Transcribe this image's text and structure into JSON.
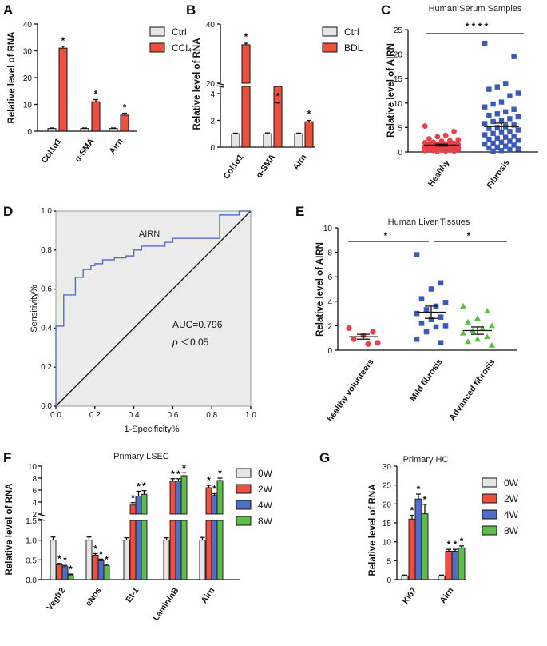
{
  "colors": {
    "ctrl": "#e6e6e6",
    "red": "#ef4f3c",
    "blue": "#4f6ec8",
    "green": "#5ebd4a",
    "healthy": "#e8414c",
    "fibrosis": "#3b59b8",
    "roc_curve": "#5a6fc0",
    "roc_diag": "#4fbf8f",
    "roc_bg": "#ececec"
  },
  "panels": {
    "A": "A",
    "B": "B",
    "C": "C",
    "D": "D",
    "E": "E",
    "F": "F",
    "G": "G"
  },
  "chart_data": [
    {
      "id": "A",
      "type": "bar",
      "ylabel": "Relative level of RNA",
      "ylim": [
        0,
        40
      ],
      "yticks": [
        0,
        10,
        20,
        30,
        40
      ],
      "categories": [
        "Col1α1",
        "α-SMA",
        "Airn"
      ],
      "legend": [
        "Ctrl",
        "CCl₄"
      ],
      "series": [
        {
          "name": "Ctrl",
          "values": [
            1,
            1,
            1
          ],
          "errors": [
            0.2,
            0.2,
            0.2
          ]
        },
        {
          "name": "CCl₄",
          "values": [
            31,
            11,
            6
          ],
          "errors": [
            0.7,
            0.8,
            0.7
          ]
        }
      ],
      "sig": [
        "*",
        "*",
        "*"
      ]
    },
    {
      "id": "B",
      "type": "bar",
      "ylabel": "Relative level of RNA",
      "ylim": [
        0,
        40
      ],
      "axis_break": [
        4.8,
        20
      ],
      "yticks": [
        0,
        2,
        4,
        20,
        40
      ],
      "categories": [
        "Col1α1",
        "α-SMA",
        "Airn"
      ],
      "legend": [
        "Ctrl",
        "BDL"
      ],
      "series": [
        {
          "name": "Ctrl",
          "values": [
            1,
            1,
            1
          ],
          "errors": [
            0.05,
            0.07,
            0.05
          ]
        },
        {
          "name": "BDL",
          "values": [
            33,
            13,
            1.9
          ],
          "errors": [
            0.5,
            0.4,
            0.1
          ]
        }
      ],
      "sig": [
        "*",
        "*",
        "*"
      ]
    },
    {
      "id": "C",
      "type": "scatter",
      "title": "Human Serum Samples",
      "ylabel": "Relative level of AIRN",
      "ylim": [
        0,
        25
      ],
      "yticks": [
        0,
        5,
        10,
        15,
        20,
        25
      ],
      "categories": [
        "Healthy",
        "Fibrosis"
      ],
      "sig": "* * * *",
      "groups": [
        {
          "name": "Healthy",
          "mean": 1.4,
          "sem": 0.2,
          "values": [
            5.3,
            4.2,
            3.4,
            3.1,
            2.7,
            2.5,
            2.3,
            2.2,
            2.0,
            1.9,
            1.8,
            1.7,
            1.6,
            1.5,
            1.5,
            1.4,
            1.3,
            1.3,
            1.2,
            1.1,
            1.1,
            1.0,
            1.0,
            0.9,
            0.9,
            0.8,
            0.8,
            0.7,
            0.7,
            0.6,
            0.6,
            0.5,
            0.5,
            0.4,
            0.4,
            0.3,
            0.3,
            0.2,
            0.2,
            0.1
          ]
        },
        {
          "name": "Fibrosis",
          "mean": 5.2,
          "sem": 0.7,
          "values": [
            22.2,
            19.5,
            14.0,
            13.3,
            12.8,
            12.0,
            11.5,
            10.2,
            9.8,
            9.2,
            8.7,
            8.2,
            7.8,
            7.5,
            7.2,
            6.8,
            6.5,
            6.2,
            5.8,
            5.5,
            5.2,
            5.0,
            4.8,
            4.5,
            4.2,
            4.0,
            3.8,
            3.5,
            3.2,
            3.0,
            2.8,
            2.6,
            2.4,
            2.2,
            2.0,
            1.8,
            1.6,
            1.4,
            1.2,
            1.0,
            0.8,
            0.6,
            0.5,
            0.3,
            0.2
          ]
        }
      ]
    },
    {
      "id": "D",
      "type": "line",
      "title": "AIRN",
      "xlabel": "1-Specificity%",
      "ylabel": "Sensitivity%",
      "xlim": [
        0,
        1
      ],
      "ylim": [
        0,
        1
      ],
      "xticks": [
        "0.0",
        "0.2",
        "0.4",
        "0.6",
        "0.8",
        "1.0"
      ],
      "yticks": [
        "0.0",
        "0.2",
        "0.4",
        "0.6",
        "0.8",
        "1.0"
      ],
      "annotation_auc": "AUC=0.796",
      "annotation_p": "p",
      "annotation_p_rest": "＜0.05",
      "x": [
        0,
        0,
        0.04,
        0.04,
        0.1,
        0.1,
        0.14,
        0.14,
        0.18,
        0.18,
        0.2,
        0.2,
        0.24,
        0.24,
        0.3,
        0.3,
        0.36,
        0.36,
        0.4,
        0.4,
        0.44,
        0.44,
        0.56,
        0.56,
        0.6,
        0.6,
        0.84,
        0.84,
        0.94,
        0.94,
        1.0,
        1.0
      ],
      "y": [
        0,
        0.41,
        0.41,
        0.57,
        0.57,
        0.66,
        0.66,
        0.7,
        0.7,
        0.72,
        0.72,
        0.73,
        0.73,
        0.75,
        0.75,
        0.76,
        0.76,
        0.77,
        0.77,
        0.8,
        0.8,
        0.82,
        0.82,
        0.84,
        0.84,
        0.86,
        0.86,
        0.98,
        0.98,
        1.0,
        1.0,
        1.0
      ]
    },
    {
      "id": "E",
      "type": "scatter",
      "title": "Human Liver Tissues",
      "ylabel": "Relative level of AIRN",
      "ylim": [
        0,
        10
      ],
      "yticks": [
        0,
        2,
        4,
        6,
        8,
        10
      ],
      "categories": [
        "healthy volunteers",
        "Mild fibrosis",
        "Advanced fibrosis"
      ],
      "sig": [
        "*",
        "*"
      ],
      "groups": [
        {
          "name": "healthy volunteers",
          "mean": 1.1,
          "sem": 0.2,
          "values": [
            1.8,
            1.5,
            1.2,
            0.9,
            0.6,
            0.5
          ]
        },
        {
          "name": "Mild fibrosis",
          "mean": 3.1,
          "sem": 0.5,
          "values": [
            7.8,
            5.5,
            5.0,
            4.2,
            3.9,
            3.6,
            3.3,
            3.0,
            2.7,
            2.5,
            2.2,
            2.0,
            1.9,
            1.5,
            0.9,
            0.6
          ]
        },
        {
          "name": "Advanced fibrosis",
          "mean": 1.6,
          "sem": 0.3,
          "values": [
            3.6,
            3.2,
            2.6,
            2.3,
            2.0,
            1.8,
            1.6,
            1.4,
            1.1,
            0.9,
            0.7,
            0.4
          ]
        }
      ]
    },
    {
      "id": "F",
      "type": "bar",
      "title": "Primary LSEC",
      "ylabel": "Relative level of RNA",
      "axis_break": [
        1.5,
        2
      ],
      "yticks": [
        "0.0",
        "0.5",
        "1.0",
        "1.5",
        "2",
        "4",
        "6",
        "8",
        "10"
      ],
      "categories": [
        "Vegfr2",
        "eNos",
        "Et-1",
        "LamininB",
        "Airn"
      ],
      "legend": [
        "0W",
        "2W",
        "4W",
        "8W"
      ],
      "series": [
        {
          "name": "0W",
          "values": [
            1.0,
            1.0,
            1.0,
            1.0,
            1.0
          ],
          "errors": [
            0.08,
            0.08,
            0.06,
            0.06,
            0.07
          ]
        },
        {
          "name": "2W",
          "values": [
            0.38,
            0.62,
            3.5,
            7.5,
            6.4
          ],
          "errors": [
            0.03,
            0.04,
            0.4,
            0.4,
            0.4
          ]
        },
        {
          "name": "4W",
          "values": [
            0.33,
            0.48,
            5.0,
            7.5,
            5.1
          ],
          "errors": [
            0.03,
            0.04,
            0.8,
            0.4,
            0.3
          ]
        },
        {
          "name": "8W",
          "values": [
            0.12,
            0.36,
            5.3,
            8.4,
            7.6
          ],
          "errors": [
            0.02,
            0.03,
            0.6,
            0.5,
            0.4
          ]
        }
      ],
      "sig": [
        [
          false,
          true,
          true,
          true
        ],
        [
          false,
          true,
          true,
          true
        ],
        [
          false,
          true,
          true,
          true
        ],
        [
          false,
          true,
          true,
          true
        ],
        [
          false,
          true,
          true,
          true
        ]
      ]
    },
    {
      "id": "G",
      "type": "bar",
      "title": "Primary HC",
      "ylabel": "Relative level of RNA",
      "ylim": [
        0,
        30
      ],
      "yticks": [
        0,
        5,
        10,
        15,
        20,
        25,
        30
      ],
      "categories": [
        "Ki67",
        "Airn"
      ],
      "legend": [
        "0W",
        "2W",
        "4W",
        "8W"
      ],
      "series": [
        {
          "name": "0W",
          "values": [
            1.0,
            1.0
          ],
          "errors": [
            0.2,
            0.2
          ]
        },
        {
          "name": "2W",
          "values": [
            16.0,
            7.5
          ],
          "errors": [
            1.0,
            0.5
          ]
        },
        {
          "name": "4W",
          "values": [
            21.3,
            7.5
          ],
          "errors": [
            1.3,
            0.5
          ]
        },
        {
          "name": "8W",
          "values": [
            17.4,
            8.4
          ],
          "errors": [
            2.5,
            0.5
          ]
        }
      ],
      "sig": [
        [
          false,
          true,
          true,
          true
        ],
        [
          false,
          true,
          true,
          true
        ]
      ]
    }
  ]
}
